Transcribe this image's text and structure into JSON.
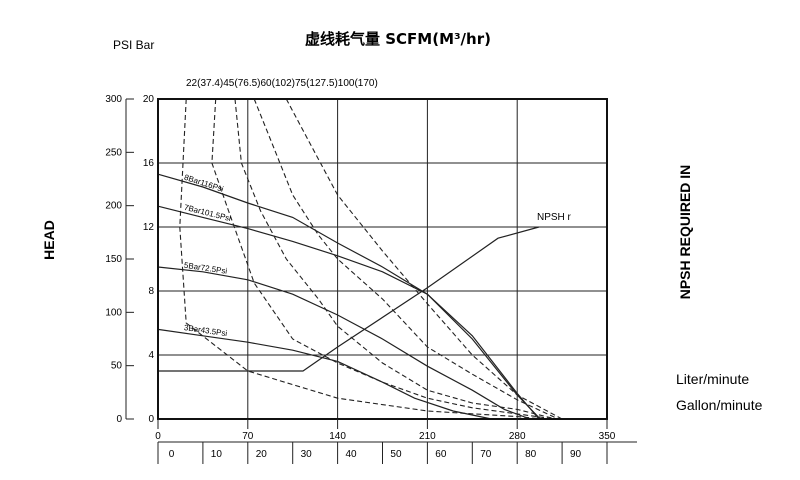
{
  "chart_data": {
    "type": "line",
    "title": "虚线耗气量 SCFM(M³/hr)",
    "left_units_label": "PSI Bar",
    "ylabel": "HEAD",
    "ylabel_right": "NPSH REQUIRED IN",
    "x_label_primary": "Liter/minute",
    "x_label_secondary": "Gallon/minute",
    "xlim": [
      0,
      350
    ],
    "ylim_psi": [
      0,
      300
    ],
    "ylim_bar": [
      0,
      20
    ],
    "x_ticks_primary": [
      "0",
      "70",
      "140",
      "210",
      "280",
      "350"
    ],
    "x_ticks_secondary": [
      "0",
      "10",
      "20",
      "30",
      "40",
      "50",
      "60",
      "70",
      "80",
      "90"
    ],
    "psi_ticks": [
      "0",
      "50",
      "100",
      "150",
      "200",
      "250",
      "300"
    ],
    "bar_ticks": [
      "0",
      "4",
      "8",
      "12",
      "16",
      "20"
    ],
    "air_consumption_label": "22(37.4)45(76.5)60(102)75(127.5)100(170)",
    "grid": true,
    "legend_position": "none",
    "series": [
      {
        "name": "8Bar116Psi",
        "style": "solid",
        "points": [
          [
            0,
            15.3
          ],
          [
            35,
            14.5
          ],
          [
            70,
            13.5
          ],
          [
            105,
            12.6
          ],
          [
            140,
            11.0
          ],
          [
            175,
            9.5
          ],
          [
            210,
            7.8
          ],
          [
            245,
            5.0
          ],
          [
            280,
            1.5
          ],
          [
            298,
            0
          ]
        ]
      },
      {
        "name": "7Bar101.5Psi",
        "style": "solid",
        "points": [
          [
            0,
            13.3
          ],
          [
            35,
            12.6
          ],
          [
            70,
            11.9
          ],
          [
            105,
            11.1
          ],
          [
            140,
            10.2
          ],
          [
            175,
            9.2
          ],
          [
            210,
            7.8
          ],
          [
            245,
            5.2
          ],
          [
            280,
            1.6
          ],
          [
            297,
            0
          ]
        ]
      },
      {
        "name": "5Bar72.5Psi",
        "style": "solid",
        "points": [
          [
            0,
            9.5
          ],
          [
            35,
            9.2
          ],
          [
            70,
            8.7
          ],
          [
            105,
            7.8
          ],
          [
            140,
            6.5
          ],
          [
            175,
            5.0
          ],
          [
            210,
            3.3
          ],
          [
            245,
            1.8
          ],
          [
            270,
            0.6
          ],
          [
            290,
            0
          ]
        ]
      },
      {
        "name": "3Bar43.5Psi",
        "style": "solid",
        "points": [
          [
            0,
            5.6
          ],
          [
            35,
            5.2
          ],
          [
            70,
            4.8
          ],
          [
            105,
            4.3
          ],
          [
            140,
            3.6
          ],
          [
            175,
            2.3
          ],
          [
            200,
            1.3
          ],
          [
            230,
            0.5
          ],
          [
            260,
            0
          ]
        ]
      },
      {
        "name": "NPSH r",
        "style": "solid",
        "points": [
          [
            0,
            3.0
          ],
          [
            113,
            3.0
          ],
          [
            140,
            4.5
          ],
          [
            210,
            8.2
          ],
          [
            265,
            11.3
          ],
          [
            297,
            12.0
          ]
        ]
      },
      {
        "name": "",
        "style": "dashed",
        "points": [
          [
            22,
            20
          ],
          [
            17,
            12
          ],
          [
            22,
            6
          ],
          [
            70,
            3.0
          ],
          [
            140,
            1.3
          ],
          [
            210,
            0.5
          ],
          [
            280,
            0.15
          ],
          [
            300,
            0
          ]
        ]
      },
      {
        "name": "",
        "style": "dashed",
        "points": [
          [
            45,
            20
          ],
          [
            42,
            16
          ],
          [
            55,
            13
          ],
          [
            75,
            8.5
          ],
          [
            105,
            5
          ],
          [
            140,
            3.5
          ],
          [
            175,
            2.3
          ],
          [
            210,
            1.3
          ],
          [
            245,
            0.7
          ],
          [
            300,
            0.1
          ],
          [
            308,
            0
          ]
        ]
      },
      {
        "name": "",
        "style": "dashed",
        "points": [
          [
            60,
            20
          ],
          [
            65,
            16
          ],
          [
            80,
            13
          ],
          [
            100,
            10
          ],
          [
            125,
            7.5
          ],
          [
            140,
            5.8
          ],
          [
            175,
            3.5
          ],
          [
            210,
            1.8
          ],
          [
            245,
            1.0
          ],
          [
            280,
            0.6
          ],
          [
            310,
            0
          ]
        ]
      },
      {
        "name": "",
        "style": "dashed",
        "points": [
          [
            75,
            20
          ],
          [
            90,
            17
          ],
          [
            105,
            14
          ],
          [
            125,
            11.5
          ],
          [
            140,
            10.0
          ],
          [
            175,
            7.5
          ],
          [
            210,
            4.5
          ],
          [
            245,
            2.8
          ],
          [
            280,
            1.2
          ],
          [
            312,
            0
          ]
        ]
      },
      {
        "name": "",
        "style": "dashed",
        "points": [
          [
            100,
            20
          ],
          [
            120,
            17
          ],
          [
            140,
            14
          ],
          [
            160,
            12
          ],
          [
            175,
            10.5
          ],
          [
            210,
            7.2
          ],
          [
            245,
            4.0
          ],
          [
            280,
            1.5
          ],
          [
            315,
            0
          ]
        ]
      }
    ]
  }
}
